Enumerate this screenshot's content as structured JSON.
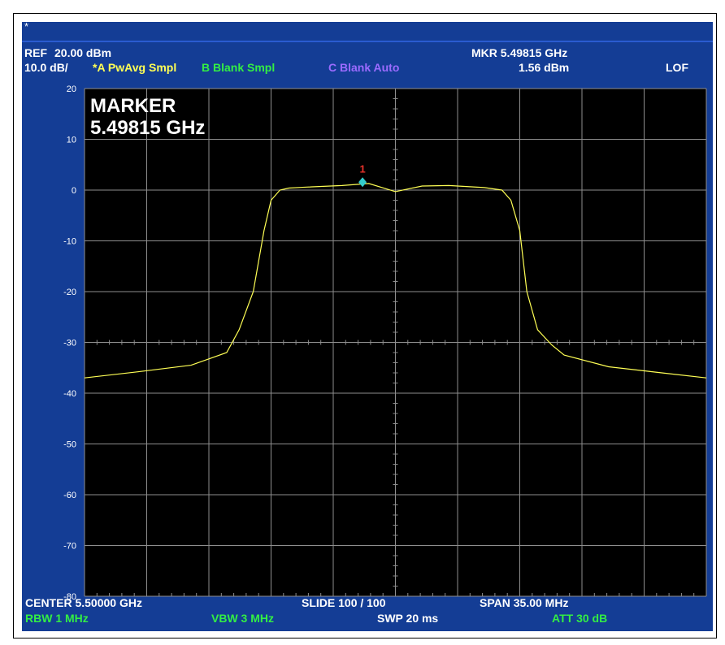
{
  "header": {
    "star": "*",
    "ref_label": "REF",
    "ref_value": "20.00 dBm",
    "scale": "10.0 dB/",
    "trace_a": "*A PwAvg Smpl",
    "trace_b": "B Blank Smpl",
    "trace_c": "C Blank Auto",
    "marker_freq": "MKR 5.49815 GHz",
    "marker_level": "1.56 dBm",
    "lof": "LOF"
  },
  "overlay": {
    "line1": "MARKER",
    "line2": "5.49815 GHz"
  },
  "footer": {
    "center": "CENTER 5.50000 GHz",
    "slide": "SLIDE 100 / 100",
    "span": "SPAN 35.00 MHz",
    "rbw": "RBW  1 MHz",
    "vbw": "VBW  3 MHz",
    "swp": "SWP  20 ms",
    "att": "ATT  30 dB"
  },
  "colors": {
    "screen_bg": "#143d95",
    "plot_bg": "#000000",
    "grid": "#8e8e8e",
    "trace": "#ffff55",
    "marker": "#33cccc",
    "marker_label": "#e8322a"
  },
  "chart_data": {
    "type": "line",
    "title": "",
    "xlabel": "",
    "ylabel": "",
    "xlim": [
      5.4825,
      5.5175
    ],
    "ylim": [
      -80,
      20
    ],
    "yticks": [
      20,
      10,
      0,
      -10,
      -20,
      -30,
      -40,
      -50,
      -60,
      -70,
      -80
    ],
    "grid": true,
    "x_divisions": 10,
    "series": [
      {
        "x_ghz": [
          5.4825,
          5.4855,
          5.4885,
          5.4905,
          5.4912,
          5.492,
          5.4926,
          5.493,
          5.4935,
          5.494,
          5.495,
          5.497,
          5.4985,
          5.5,
          5.5015,
          5.503,
          5.505,
          5.506,
          5.5065,
          5.507,
          5.5074,
          5.508,
          5.5088,
          5.5095,
          5.512,
          5.515,
          5.5175
        ],
        "y_dbm": [
          -37.0,
          -35.8,
          -34.5,
          -32.0,
          -27.5,
          -20.0,
          -8.0,
          -2.0,
          0.0,
          0.4,
          0.6,
          0.9,
          1.3,
          -0.3,
          0.8,
          0.9,
          0.5,
          0.0,
          -2.0,
          -8.0,
          -20.0,
          -27.5,
          -30.5,
          -32.5,
          -34.8,
          -36.0,
          -37.0
        ]
      }
    ],
    "marker": {
      "label": "1",
      "x_ghz": 5.49815,
      "y_dbm": 1.56
    }
  }
}
